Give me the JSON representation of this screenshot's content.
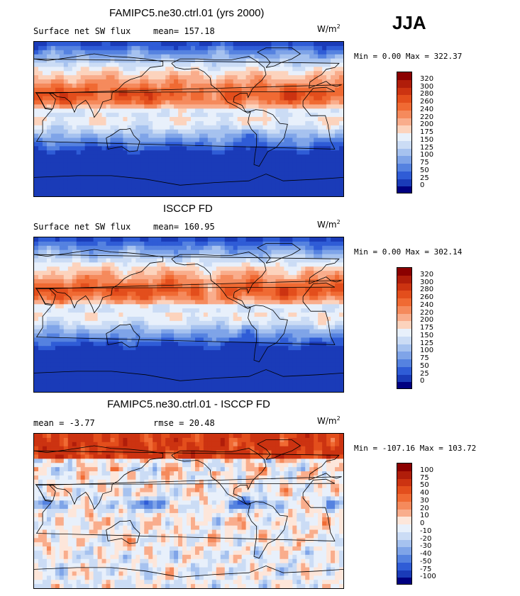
{
  "season": "JJA",
  "panels": [
    {
      "title": "FAMIPC5.ne30.ctrl.01 (yrs 2000)",
      "subtitle_left": "Surface net SW flux",
      "stat_text": "mean= 157.18",
      "units_base": "W/m",
      "units_sup": "2",
      "minmax": "Min =   0.00 Max = 322.37",
      "levels": [
        "320",
        "300",
        "280",
        "260",
        "240",
        "220",
        "200",
        "175",
        "150",
        "125",
        "100",
        "75",
        "50",
        "25",
        "0"
      ],
      "colors": [
        "#8b0000",
        "#b01d0a",
        "#cc3311",
        "#e34e1c",
        "#f06a33",
        "#f58a5c",
        "#f9ad8c",
        "#fcd3bd",
        "#e8f0fb",
        "#cbdcf5",
        "#a6c2ef",
        "#7fa4e8",
        "#5582e0",
        "#2f5cd6",
        "#1a3bb8",
        "#000080"
      ],
      "mean_field": 157.18
    },
    {
      "title": "ISCCP FD",
      "subtitle_left": "Surface net SW flux",
      "stat_text": "mean= 160.95",
      "units_base": "W/m",
      "units_sup": "2",
      "minmax": "Min =   0.00 Max = 302.14",
      "levels": [
        "320",
        "300",
        "280",
        "260",
        "240",
        "220",
        "200",
        "175",
        "150",
        "125",
        "100",
        "75",
        "50",
        "25",
        "0"
      ],
      "colors": [
        "#8b0000",
        "#b01d0a",
        "#cc3311",
        "#e34e1c",
        "#f06a33",
        "#f58a5c",
        "#f9ad8c",
        "#fcd3bd",
        "#e8f0fb",
        "#cbdcf5",
        "#a6c2ef",
        "#7fa4e8",
        "#5582e0",
        "#2f5cd6",
        "#1a3bb8",
        "#000080"
      ],
      "mean_field": 160.95
    },
    {
      "title": "FAMIPC5.ne30.ctrl.01 - ISCCP FD",
      "subtitle_left": "mean =   -3.77",
      "stat_text": "rmse =  20.48",
      "units_base": "W/m",
      "units_sup": "2",
      "minmax": "Min = -107.16 Max = 103.72",
      "levels": [
        "100",
        "75",
        "50",
        "40",
        "30",
        "20",
        "10",
        "0",
        "-10",
        "-20",
        "-30",
        "-40",
        "-50",
        "-75",
        "-100"
      ],
      "colors": [
        "#8b0000",
        "#b01d0a",
        "#cc3311",
        "#e34e1c",
        "#f06a33",
        "#f58a5c",
        "#f9ad8c",
        "#fde6da",
        "#e8f0fb",
        "#cbdcf5",
        "#a6c2ef",
        "#7fa4e8",
        "#5582e0",
        "#2f5cd6",
        "#1a3bb8",
        "#000080"
      ],
      "mean_field": -3.77
    }
  ],
  "chart_data": [
    {
      "type": "heatmap",
      "title": "FAMIPC5.ne30.ctrl.01 (yrs 2000)",
      "variable": "Surface net SW flux",
      "mean": 157.18,
      "min": 0.0,
      "max": 322.37,
      "units": "W/m2",
      "colorbar_levels": [
        0,
        25,
        50,
        75,
        100,
        125,
        150,
        175,
        200,
        220,
        240,
        260,
        280,
        300,
        320
      ]
    },
    {
      "type": "heatmap",
      "title": "ISCCP FD",
      "variable": "Surface net SW flux",
      "mean": 160.95,
      "min": 0.0,
      "max": 302.14,
      "units": "W/m2",
      "colorbar_levels": [
        0,
        25,
        50,
        75,
        100,
        125,
        150,
        175,
        200,
        220,
        240,
        260,
        280,
        300,
        320
      ]
    },
    {
      "type": "heatmap",
      "title": "FAMIPC5.ne30.ctrl.01 - ISCCP FD",
      "mean": -3.77,
      "rmse": 20.48,
      "min": -107.16,
      "max": 103.72,
      "units": "W/m2",
      "colorbar_levels": [
        -100,
        -75,
        -50,
        -40,
        -30,
        -20,
        -10,
        0,
        10,
        20,
        30,
        40,
        50,
        75,
        100
      ]
    }
  ]
}
